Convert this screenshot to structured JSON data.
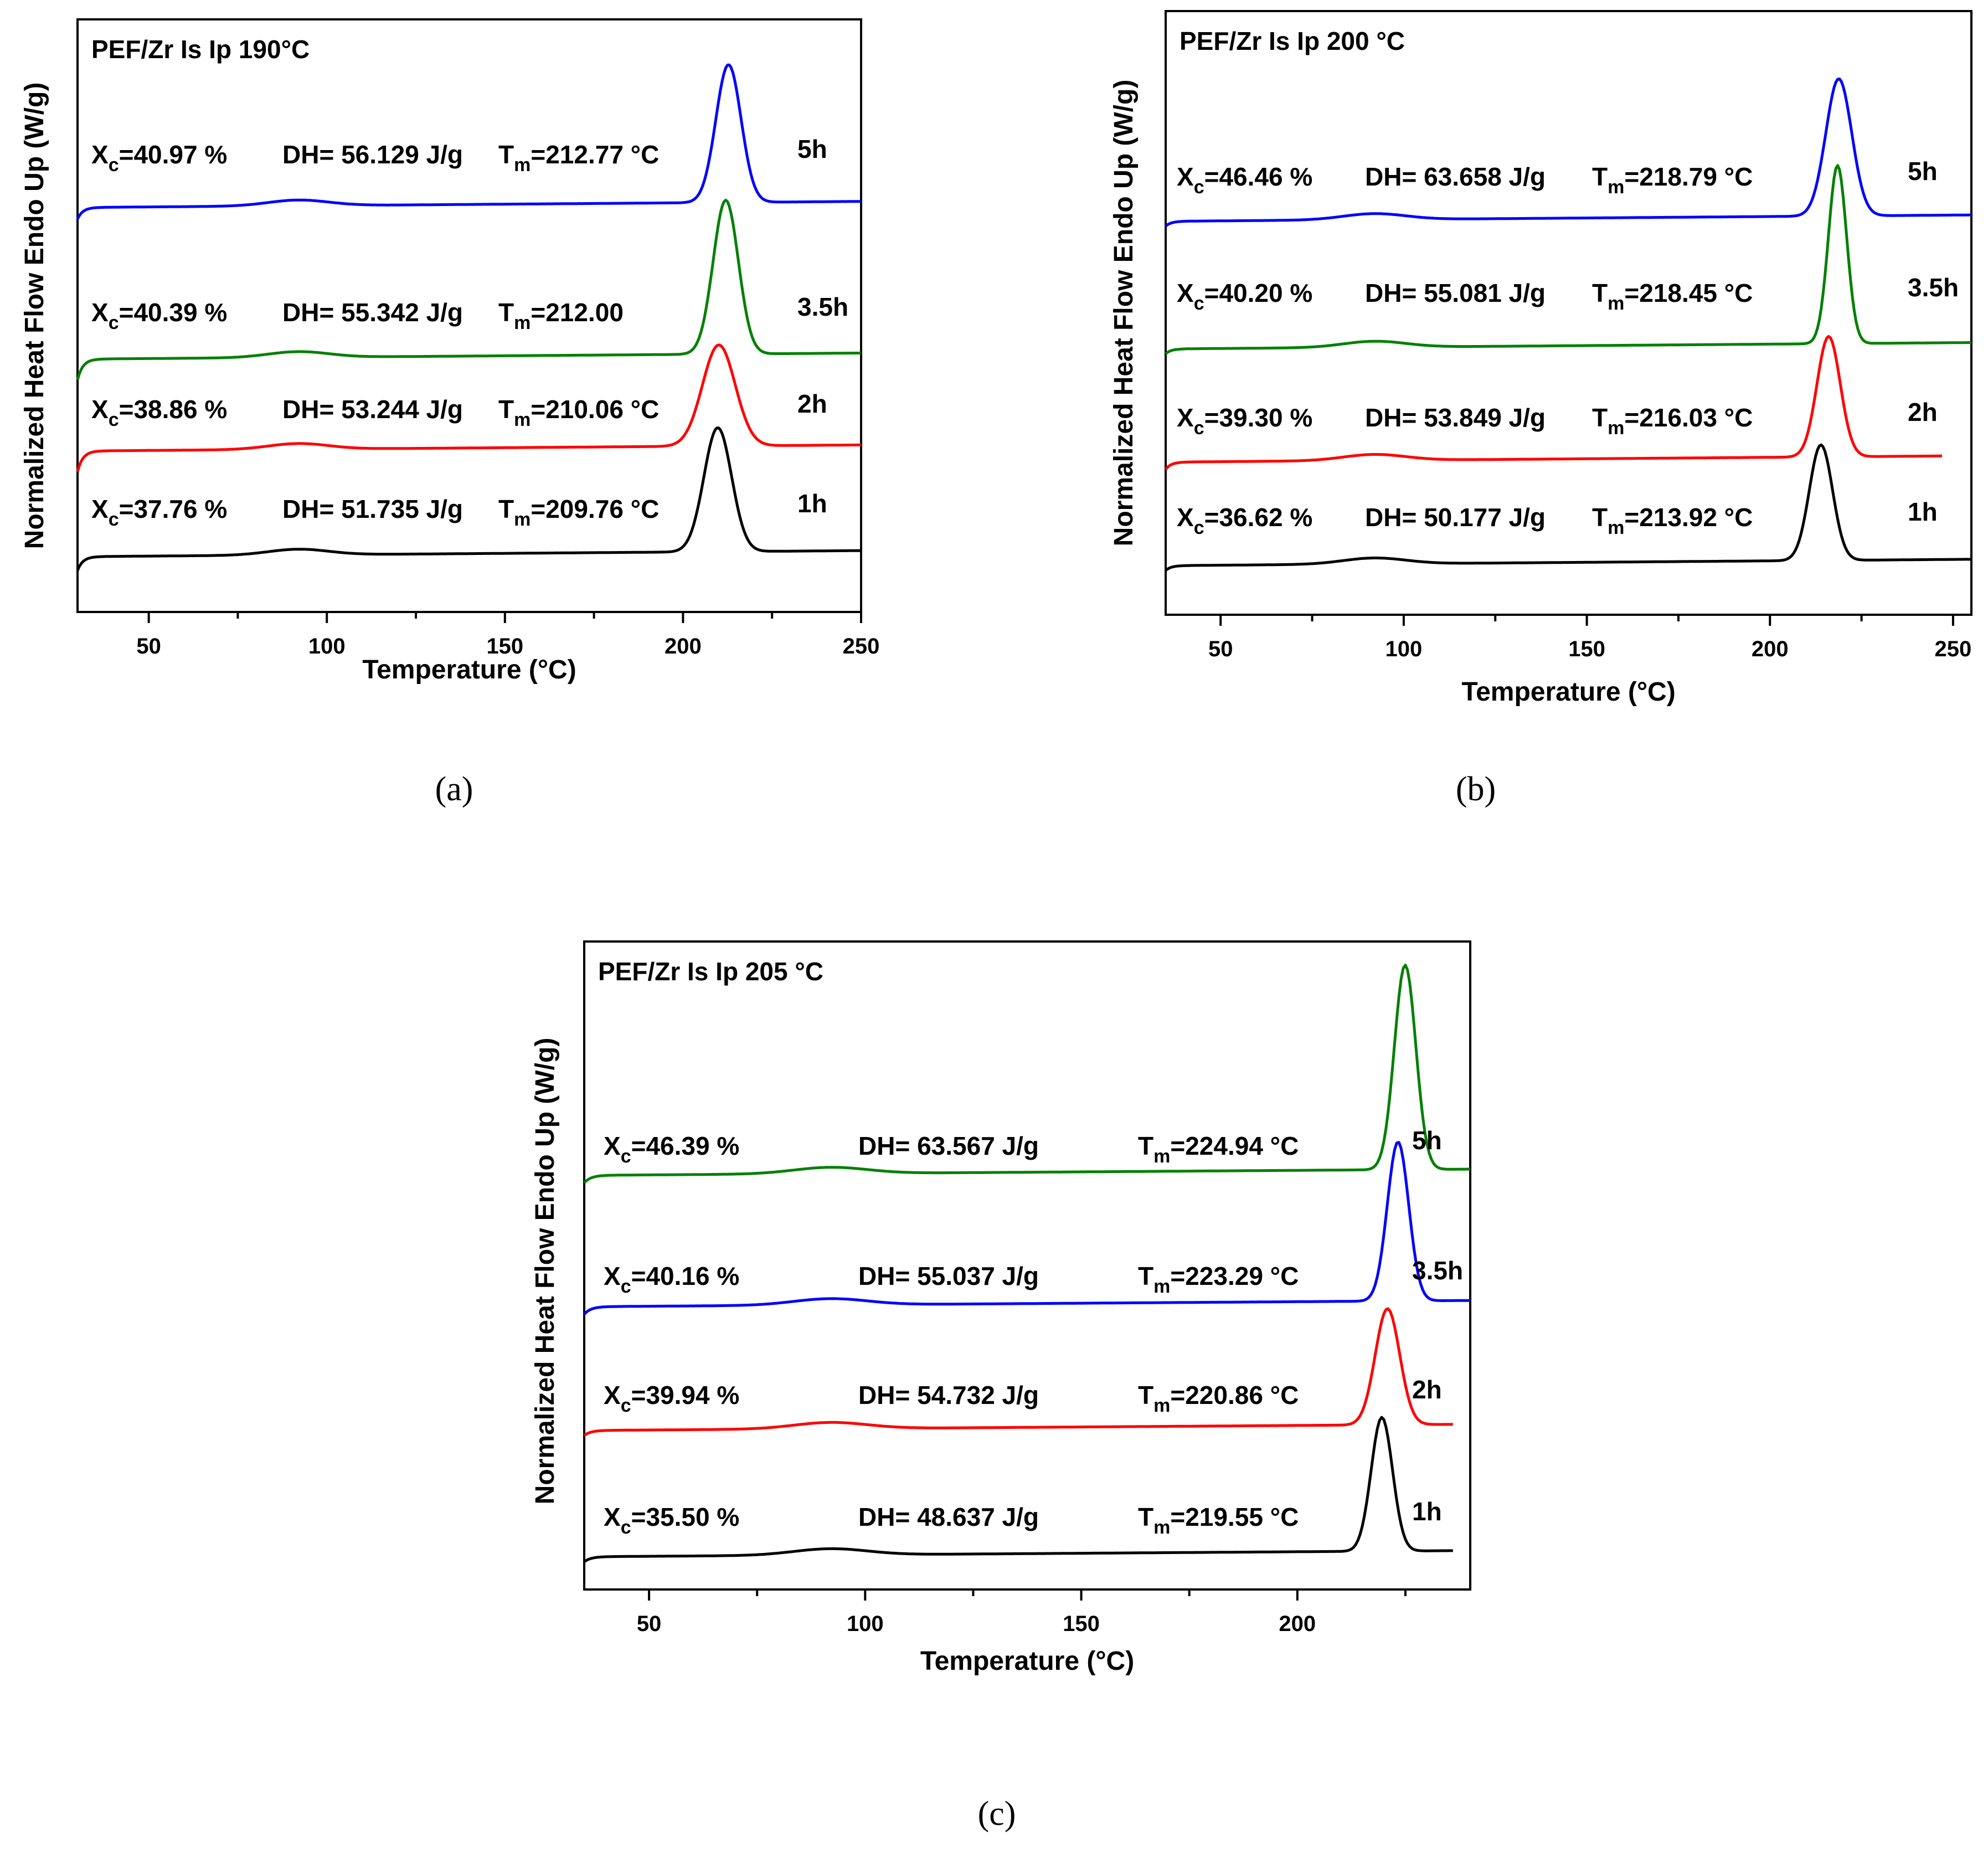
{
  "chart_data": [
    {
      "type": "line",
      "panel": "a",
      "caption": "(a)",
      "title": "PEF/Zr Is Ip 190°C",
      "xlabel": "Temperature (°C)",
      "ylabel": "Normalized Heat Flow Endo Up (W/g)",
      "xlim": [
        30,
        250
      ],
      "xticks": [
        50,
        100,
        150,
        200,
        250
      ],
      "series": [
        {
          "name": "1h",
          "color": "#000000",
          "baseline": 0.0,
          "onset_level": 0.6,
          "step_start": 30,
          "peak_T": 209.76,
          "peak_height": 5.4,
          "width": 5.5,
          "Xc": "=37.76 %",
          "DH": "DH= 51.735 J/g",
          "Tm": "=209.76 °C"
        },
        {
          "name": "2h",
          "color": "#ff0000",
          "baseline": 4.3,
          "onset_level": 0.9,
          "step_start": 30,
          "peak_T": 210.06,
          "peak_height": 4.4,
          "width": 6.5,
          "Xc": "=38.86 %",
          "DH": "DH= 53.244 J/g",
          "Tm": "=210.06 °C"
        },
        {
          "name": "3.5h",
          "color": "#008000",
          "baseline": 8.3,
          "onset_level": 0.9,
          "step_start": 30,
          "peak_T": 212.0,
          "peak_height": 6.7,
          "width": 5.0,
          "Xc": "=40.39 %",
          "DH": "DH= 55.342 J/g",
          "Tm": "=212.00"
        },
        {
          "name": "5h",
          "color": "#0000ff",
          "baseline": 15.3,
          "onset_level": 0.5,
          "step_start": 30,
          "peak_T": 212.77,
          "peak_height": 6.0,
          "width": 5.0,
          "Xc": "=40.97 %",
          "DH": "DH= 56.129 J/g",
          "Tm": "=212.77 °C"
        }
      ]
    },
    {
      "type": "line",
      "panel": "b",
      "caption": "(b)",
      "title": "PEF/Zr Is Ip 200 °C",
      "xlabel": "Temperature (°C)",
      "ylabel": "Normalized Heat Flow Endo Up (W/g)",
      "xlim": [
        35,
        255
      ],
      "xticks": [
        50,
        100,
        150,
        200,
        250
      ],
      "series": [
        {
          "name": "1h",
          "color": "#000000",
          "baseline": 0.0,
          "onset_level": 0.2,
          "step_start": 35,
          "peak_T": 213.92,
          "peak_height": 4.8,
          "width": 4.5,
          "Xc": "=36.62 %",
          "DH": "DH= 50.177 J/g",
          "Tm": "=213.92 °C"
        },
        {
          "name": "2h",
          "color": "#ff0000",
          "baseline": 4.2,
          "onset_level": 0.3,
          "step_start": 35,
          "peak_T": 216.03,
          "peak_height": 5.0,
          "width": 4.5,
          "Xc": "=39.30 %",
          "DH": "DH= 53.849 J/g",
          "Tm": "=216.03 °C"
        },
        {
          "name": "3.5h",
          "color": "#008000",
          "baseline": 9.0,
          "onset_level": 0.2,
          "step_start": 35,
          "peak_T": 218.45,
          "peak_height": 7.4,
          "width": 3.5,
          "Xc": "=40.20 %",
          "DH": "DH= 55.081 J/g",
          "Tm": "=218.45 °C"
        },
        {
          "name": "5h",
          "color": "#0000ff",
          "baseline": 14.3,
          "onset_level": 0.2,
          "step_start": 35,
          "peak_T": 218.79,
          "peak_height": 5.7,
          "width": 5.0,
          "Xc": "=46.46 %",
          "DH": "DH= 63.658 J/g",
          "Tm": "=218.79 °C"
        }
      ]
    },
    {
      "type": "line",
      "panel": "c",
      "caption": "(c)",
      "title": "PEF/Zr Is Ip 205 °C",
      "xlabel": "Temperature (°C)",
      "ylabel": "Normalized Heat Flow Endo Up (W/g)",
      "xlim": [
        35,
        240
      ],
      "xticks": [
        50,
        100,
        150,
        200
      ],
      "series": [
        {
          "name": "1h",
          "color": "#000000",
          "baseline": 0.0,
          "onset_level": 0.2,
          "step_start": 35,
          "peak_T": 219.55,
          "peak_height": 5.3,
          "width": 3.5,
          "Xc": "=35.50 %",
          "DH": "DH= 48.637 J/g",
          "Tm": "=219.55 °C"
        },
        {
          "name": "2h",
          "color": "#ff0000",
          "baseline": 5.0,
          "onset_level": 0.2,
          "step_start": 35,
          "peak_T": 220.86,
          "peak_height": 4.6,
          "width": 4.0,
          "Xc": "=39.94 %",
          "DH": "DH= 54.732 J/g",
          "Tm": "=220.86 °C"
        },
        {
          "name": "3.5h",
          "color": "#0000ff",
          "baseline": 9.8,
          "onset_level": 0.3,
          "step_start": 35,
          "peak_T": 223.29,
          "peak_height": 6.3,
          "width": 3.5,
          "Xc": "=40.16 %",
          "DH": "DH= 55.037 J/g",
          "Tm": "=223.29 °C"
        },
        {
          "name": "5h",
          "color": "#008000",
          "baseline": 15.0,
          "onset_level": 0.3,
          "step_start": 35,
          "peak_T": 224.94,
          "peak_height": 8.1,
          "width": 3.5,
          "Xc": "=46.39 %",
          "DH": "DH= 63.567 J/g",
          "Tm": "=224.94 °C"
        }
      ]
    }
  ]
}
